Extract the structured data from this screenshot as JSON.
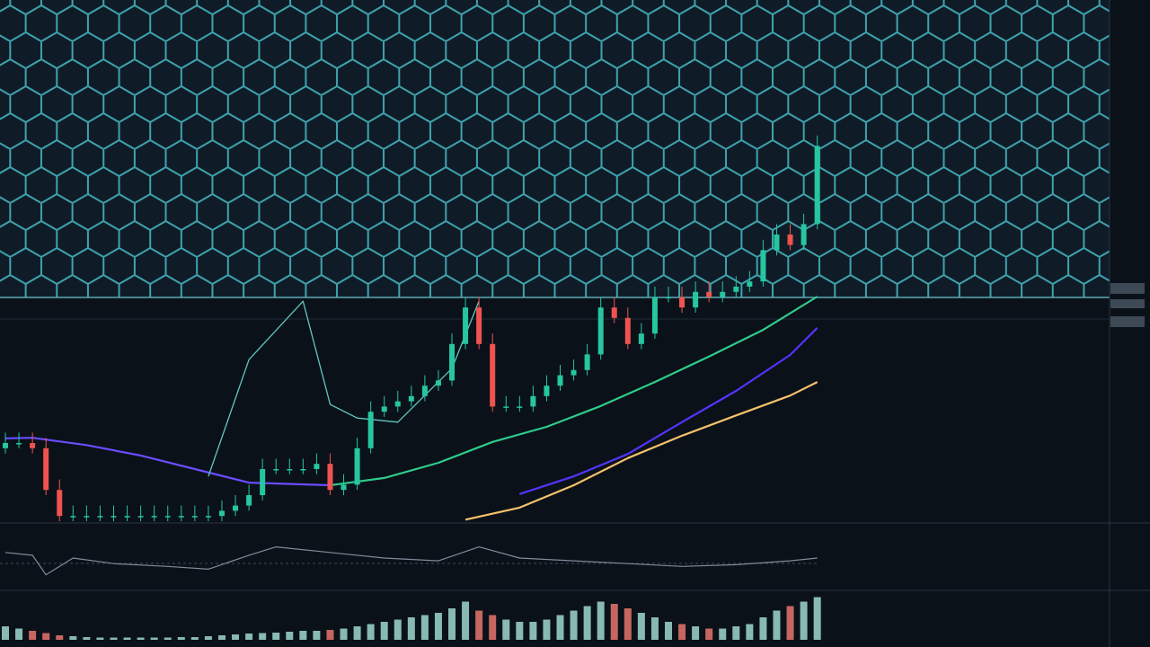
{
  "chart_data": [
    {
      "type": "candlestick",
      "xlim": [
        0,
        82
      ],
      "ylim": [
        0,
        100
      ],
      "up_color": "#26c6a0",
      "down_color": "#ef5350",
      "open": [
        14,
        15,
        15,
        14,
        6,
        1,
        1,
        1,
        1,
        1,
        1,
        1,
        1,
        1,
        1,
        1,
        1,
        2,
        3,
        5,
        10,
        10,
        10,
        10,
        11,
        6,
        7,
        14,
        21,
        22,
        23,
        24,
        26,
        27,
        34,
        41,
        34,
        22,
        22,
        22,
        24,
        26,
        28,
        29,
        32,
        41,
        39,
        34,
        36,
        43,
        43,
        41,
        44,
        43,
        44,
        45,
        46,
        52,
        55,
        53,
        57
      ],
      "high": [
        17,
        17,
        17,
        16,
        8,
        3,
        3,
        3,
        3,
        3,
        3,
        3,
        3,
        3,
        3,
        3,
        4,
        5,
        7,
        12,
        12,
        12,
        12,
        13,
        13,
        9,
        16,
        23,
        24,
        25,
        26,
        28,
        29,
        36,
        43,
        43,
        36,
        24,
        24,
        26,
        28,
        30,
        31,
        34,
        43,
        43,
        41,
        38,
        45,
        45,
        45,
        46,
        46,
        46,
        47,
        48,
        54,
        57,
        57,
        59,
        74
      ],
      "low": [
        13,
        14,
        13,
        5,
        0,
        0,
        0,
        0,
        0,
        0,
        0,
        0,
        0,
        0,
        0,
        0,
        0,
        1,
        2,
        4,
        9,
        9,
        9,
        9,
        5,
        5,
        6,
        13,
        20,
        21,
        22,
        23,
        25,
        26,
        33,
        33,
        21,
        21,
        21,
        21,
        23,
        25,
        27,
        28,
        31,
        38,
        33,
        33,
        35,
        42,
        40,
        40,
        42,
        42,
        43,
        44,
        45,
        51,
        52,
        52,
        56
      ],
      "close": [
        15,
        15,
        14,
        6,
        1,
        1,
        1,
        1,
        1,
        1,
        1,
        1,
        1,
        1,
        1,
        1,
        2,
        3,
        5,
        10,
        10,
        10,
        10,
        11,
        6,
        7,
        14,
        21,
        22,
        23,
        24,
        26,
        27,
        34,
        41,
        34,
        22,
        22,
        22,
        24,
        26,
        28,
        29,
        32,
        41,
        39,
        34,
        36,
        43,
        43,
        41,
        44,
        43,
        44,
        45,
        46,
        52,
        55,
        53,
        57,
        72
      ],
      "lines": [
        {
          "color": "#2ecc8a",
          "x": [
            24,
            28,
            32,
            36,
            40,
            44,
            48,
            52,
            56,
            60
          ],
          "values": [
            6.9,
            8.3,
            11.2,
            15.2,
            18.1,
            22.1,
            26.7,
            31.6,
            36.7,
            43.1
          ]
        },
        {
          "color": "#6a4cff",
          "x": [
            0,
            2,
            6,
            10,
            14,
            18,
            24
          ],
          "values": [
            15.9,
            16.0,
            14.6,
            12.6,
            10.0,
            7.4,
            6.9
          ]
        },
        {
          "color": "#5533ff",
          "x": [
            38,
            42,
            46,
            50,
            54,
            58,
            60
          ],
          "values": [
            5.2,
            8.6,
            12.9,
            19.0,
            25.0,
            31.9,
            37.1
          ]
        },
        {
          "color": "#f5c26b",
          "x": [
            34,
            38,
            42,
            46,
            50,
            54,
            58,
            60
          ],
          "values": [
            0.3,
            2.6,
            6.9,
            12.1,
            16.4,
            20.3,
            24.1,
            26.7
          ]
        },
        {
          "color": "#5fc7c0",
          "x": [
            15,
            18,
            22,
            24,
            26,
            29,
            33,
            35
          ],
          "values": [
            8.6,
            31.0,
            42.2,
            22.4,
            19.8,
            19.0,
            29.3,
            42.2
          ]
        }
      ]
    },
    {
      "type": "line",
      "xlim": [
        0,
        82
      ],
      "ylim": [
        0,
        100
      ],
      "color": "#7f8c99",
      "x": [
        0,
        2,
        3,
        5,
        8,
        12,
        15,
        18,
        20,
        24,
        28,
        32,
        35,
        38,
        42,
        46,
        50,
        54,
        58,
        60
      ],
      "values": [
        60,
        55,
        20,
        50,
        40,
        35,
        30,
        55,
        70,
        60,
        50,
        45,
        70,
        50,
        45,
        40,
        35,
        38,
        45,
        50
      ]
    },
    {
      "type": "bar",
      "xlim": [
        0,
        82
      ],
      "ylim": [
        0,
        100
      ],
      "up_color": "#9fd8cf",
      "down_color": "#e8756f",
      "values": [
        30,
        25,
        20,
        15,
        10,
        8,
        6,
        5,
        5,
        5,
        5,
        5,
        5,
        6,
        6,
        8,
        10,
        12,
        14,
        15,
        16,
        18,
        20,
        20,
        22,
        25,
        30,
        35,
        40,
        45,
        50,
        55,
        60,
        70,
        85,
        65,
        55,
        45,
        40,
        40,
        45,
        55,
        65,
        75,
        85,
        80,
        70,
        60,
        50,
        40,
        35,
        30,
        25,
        25,
        30,
        35,
        50,
        65,
        75,
        85,
        95
      ]
    }
  ]
}
